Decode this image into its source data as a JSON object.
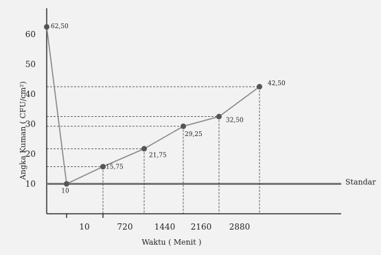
{
  "chart_data": {
    "type": "line",
    "title": "",
    "xlabel": "Waktu ( Menit )",
    "ylabel": "Angka Kuman ( CFU/cm²)",
    "x_ticks": [
      "10",
      "720",
      "1440",
      "2160",
      "2880"
    ],
    "y_ticks": [
      10,
      20,
      30,
      40,
      50,
      60
    ],
    "ylim": [
      0,
      70
    ],
    "series": [
      {
        "points": [
          {
            "x": "0",
            "y": 62.5,
            "label": "62,50"
          },
          {
            "x": "10",
            "y": 10,
            "label": "10"
          },
          {
            "x": "720",
            "y": 15.75,
            "label": "15,75"
          },
          {
            "x": "1440",
            "y": 21.75,
            "label": "21,75"
          },
          {
            "x": "2160",
            "y": 29.25,
            "label": "29,25"
          },
          {
            "x": "2880",
            "y": 32.5,
            "label": "32,50"
          },
          {
            "x": "3600",
            "y": 42.5,
            "label": "42,50"
          }
        ]
      }
    ],
    "reference_line": {
      "y": 10,
      "label": "Standar"
    },
    "grid": false,
    "colors": {
      "line": "#888888",
      "marker": "#555555",
      "axis": "#333333",
      "reference": "#777777",
      "guide": "#333333",
      "background": "#f2f2f2"
    }
  }
}
